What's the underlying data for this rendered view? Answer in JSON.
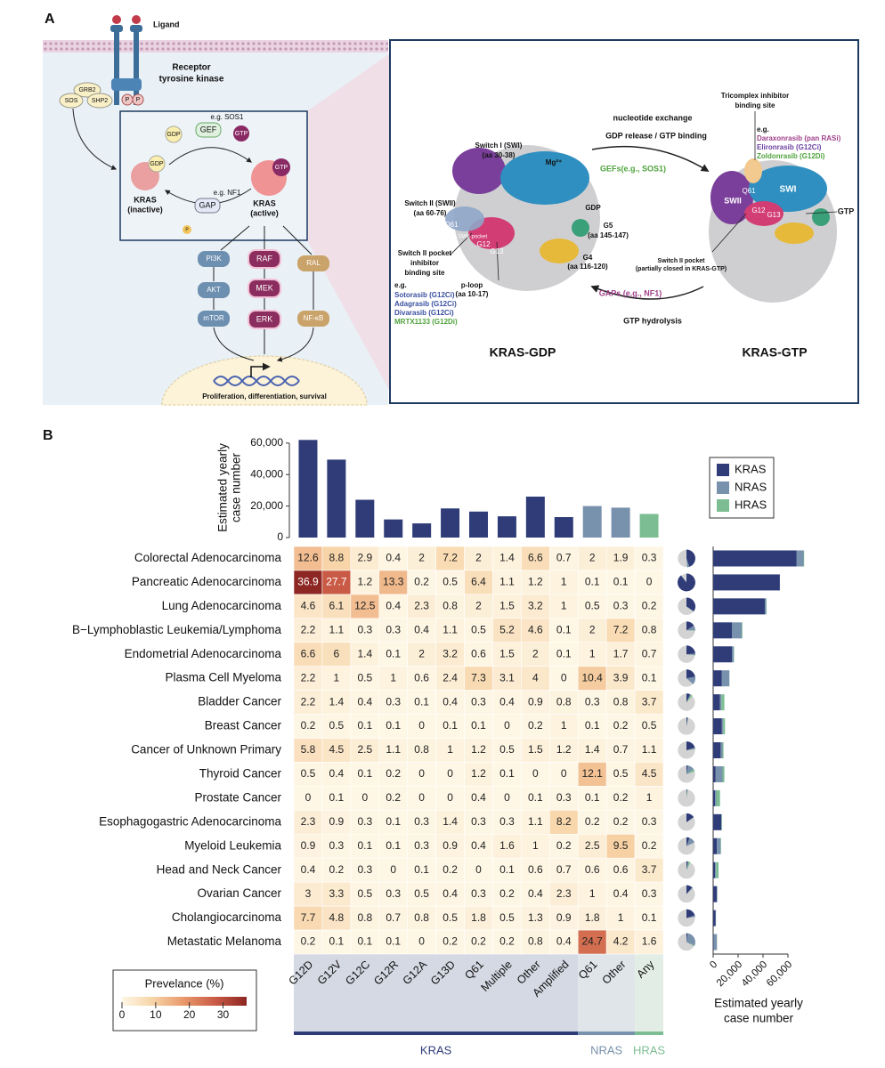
{
  "panel_a": {
    "labels": [
      "A",
      "Ligand",
      "Receptor",
      "tyrosine kinase",
      "GRB2",
      "SOS",
      "SHP2",
      "P",
      "P",
      "e.g. SOS1",
      "GEF",
      "GDP",
      "GTP",
      "GDP",
      "KRAS",
      "(inactive)",
      "GTP",
      "KRAS",
      "(active)",
      "e.g. NF1",
      "GAP",
      "P",
      "PI3K",
      "AKT",
      "mTOR",
      "RAF",
      "MEK",
      "ERK",
      "RAL",
      "NF-κB",
      "Proliferation, differentiation, survival",
      "nucleotide exchange",
      "GDP release / GTP binding",
      "GEFs(e.g., SOS1)",
      "GAPs (e.g., NF1)",
      "GTP hydrolysis",
      "KRAS-GDP",
      "KRAS-GTP",
      "Switch I (SWI)",
      "(aa 30-38)",
      "Mg²⁺",
      "Switch II (SWII)",
      "(aa 60-76)",
      "GDP",
      "G5",
      "(aa 145-147)",
      "G4",
      "(aa 116-120)",
      "Switch II pocket",
      "inhibitor",
      "binding site",
      "p-loop",
      "(aa 10-17)",
      "e.g.",
      "Sotorasib (G12Ci)",
      "Adagrasib (G12Ci)",
      "Divarasib (G12Ci)",
      "MRTX1133 (G12Di)",
      "Tricomplex inhibitor",
      "binding site",
      "e.g.",
      "Daraxonrasib (pan RASi)",
      "Elironrasib (G12Ci)",
      "Zoldonrasib (G12Di)",
      "Switch II pocket",
      "(partially closed in KRAS-GTP)",
      "GTP",
      "Q61",
      "SWII pocket",
      "G12",
      "G13",
      "SWI",
      "SWII",
      "Q61",
      "G12",
      "G13"
    ]
  },
  "panel_b": {
    "letter": "B"
  },
  "chart_data": [
    {
      "type": "heatmap",
      "rows": [
        "Colorectal Adenocarcinoma",
        "Pancreatic Adenocarcinoma",
        "Lung Adenocarcinoma",
        "B−Lymphoblastic Leukemia/Lymphoma",
        "Endometrial Adenocarcinoma",
        "Plasma Cell Myeloma",
        "Bladder Cancer",
        "Breast Cancer",
        "Cancer of Unknown Primary",
        "Thyroid Cancer",
        "Prostate Cancer",
        "Esophagogastric Adenocarcinoma",
        "Myeloid Leukemia",
        "Head and Neck Cancer",
        "Ovarian Cancer",
        "Cholangiocarcinoma",
        "Metastatic Melanoma"
      ],
      "columns": [
        "G12D",
        "G12V",
        "G12C",
        "G12R",
        "G12A",
        "G13D",
        "Q61",
        "Multiple",
        "Other",
        "Amplified",
        "Q61",
        "Other",
        "Any"
      ],
      "column_group": [
        "KRAS",
        "KRAS",
        "KRAS",
        "KRAS",
        "KRAS",
        "KRAS",
        "KRAS",
        "KRAS",
        "KRAS",
        "KRAS",
        "NRAS",
        "NRAS",
        "HRAS"
      ],
      "groups": [
        {
          "name": "KRAS",
          "color": "#2f3c78",
          "band": "#d5d9e4"
        },
        {
          "name": "NRAS",
          "color": "#7891ac",
          "band": "#e0e5ea"
        },
        {
          "name": "HRAS",
          "color": "#7cbd93",
          "band": "#e2eee5"
        }
      ],
      "values": [
        [
          12.6,
          8.8,
          2.9,
          0.4,
          2,
          7.2,
          2,
          1.4,
          6.6,
          0.7,
          2,
          1.9,
          0.3
        ],
        [
          36.9,
          27.7,
          1.2,
          13.3,
          0.2,
          0.5,
          6.4,
          1.1,
          1.2,
          1,
          0.1,
          0.1,
          0
        ],
        [
          4.6,
          6.1,
          12.5,
          0.4,
          2.3,
          0.8,
          2,
          1.5,
          3.2,
          1,
          0.5,
          0.3,
          0.2
        ],
        [
          2.2,
          1.1,
          0.3,
          0.3,
          0.4,
          1.1,
          0.5,
          5.2,
          4.6,
          0.1,
          2,
          7.2,
          0.8
        ],
        [
          6.6,
          6,
          1.4,
          0.1,
          2,
          3.2,
          0.6,
          1.5,
          2,
          0.1,
          1,
          1.7,
          0.7
        ],
        [
          2.2,
          1,
          0.5,
          1,
          0.6,
          2.4,
          7.3,
          3.1,
          4,
          0,
          10.4,
          3.9,
          0.1
        ],
        [
          2.2,
          1.4,
          0.4,
          0.3,
          0.1,
          0.4,
          0.3,
          0.4,
          0.9,
          0.8,
          0.3,
          0.8,
          3.7
        ],
        [
          0.2,
          0.5,
          0.1,
          0.1,
          0,
          0.1,
          0.1,
          0,
          0.2,
          1,
          0.1,
          0.2,
          0.5
        ],
        [
          5.8,
          4.5,
          2.5,
          1.1,
          0.8,
          1,
          1.2,
          0.5,
          1.5,
          1.2,
          1.4,
          0.7,
          1.1
        ],
        [
          0.5,
          0.4,
          0.1,
          0.2,
          0,
          0,
          1.2,
          0.1,
          0,
          0,
          12.1,
          0.5,
          4.5
        ],
        [
          0,
          0.1,
          0,
          0.2,
          0,
          0,
          0.4,
          0,
          0.1,
          0.3,
          0.1,
          0.2,
          1
        ],
        [
          2.3,
          0.9,
          0.3,
          0.1,
          0.3,
          1.4,
          0.3,
          0.3,
          1.1,
          8.2,
          0.2,
          0.2,
          0.3
        ],
        [
          0.9,
          0.3,
          0.1,
          0.1,
          0.3,
          0.9,
          0.4,
          1.6,
          1,
          0.2,
          2.5,
          9.5,
          0.2
        ],
        [
          0.4,
          0.2,
          0.3,
          0,
          0.1,
          0.2,
          0,
          0.1,
          0.6,
          0.7,
          0.6,
          0.6,
          3.7
        ],
        [
          3,
          3.3,
          0.5,
          0.3,
          0.5,
          0.4,
          0.3,
          0.2,
          0.4,
          2.3,
          1,
          0.4,
          0.3
        ],
        [
          7.7,
          4.8,
          0.8,
          0.7,
          0.8,
          0.5,
          1.8,
          0.5,
          1.3,
          0.9,
          1.8,
          1,
          0.1
        ],
        [
          0.2,
          0.1,
          0.1,
          0.1,
          0,
          0.2,
          0.2,
          0.2,
          0.8,
          0.4,
          24.7,
          4.2,
          1.6
        ]
      ],
      "colorbar_title": "Prevelance (%)",
      "clim": [
        0,
        37
      ],
      "cticks": [
        0,
        10,
        20,
        30
      ],
      "colormap": [
        "#fef7e6",
        "#f7d3a6",
        "#e8976a",
        "#c95a45",
        "#8c2623"
      ]
    },
    {
      "type": "bar",
      "ylabel": [
        "Estimated yearly",
        "case number"
      ],
      "values": [
        62000,
        49500,
        24000,
        11500,
        9000,
        18500,
        16500,
        13500,
        26000,
        13000,
        20000,
        19000,
        15000
      ],
      "colors": [
        "#2f3c78",
        "#2f3c78",
        "#2f3c78",
        "#2f3c78",
        "#2f3c78",
        "#2f3c78",
        "#2f3c78",
        "#2f3c78",
        "#2f3c78",
        "#2f3c78",
        "#7891ac",
        "#7891ac",
        "#7cbd93"
      ],
      "ylim": [
        0,
        65000
      ],
      "yticks": [
        0,
        {
          "value": 20000,
          "label": "20,000"
        },
        {
          "value": 40000,
          "label": "40,000"
        },
        {
          "value": 60000,
          "label": "60,000"
        }
      ]
    },
    {
      "type": "stacked_barh",
      "xlabel": [
        "Estimated yearly",
        "case number"
      ],
      "legend": "upper right",
      "series": [
        {
          "name": "KRAS",
          "color": "#2f3c78",
          "values": [
            67000,
            53500,
            41500,
            15000,
            15000,
            7000,
            5500,
            7000,
            6000,
            2000,
            1500,
            6500,
            3000,
            1500,
            3000,
            2000,
            500
          ]
        },
        {
          "name": "NRAS",
          "color": "#7891ac",
          "values": [
            5500,
            100,
            1000,
            8000,
            1500,
            6000,
            1000,
            1000,
            1500,
            5500,
            1000,
            400,
            3000,
            800,
            300,
            200,
            2500
          ]
        },
        {
          "name": "HRAS",
          "color": "#7cbd93",
          "values": [
            500,
            0,
            300,
            500,
            300,
            100,
            2500,
            1500,
            800,
            1500,
            3000,
            300,
            300,
            2000,
            100,
            50,
            150
          ]
        }
      ],
      "xlim": [
        0,
        75000
      ],
      "xticks": [
        0,
        {
          "value": 20000,
          "label": "20,000"
        },
        {
          "value": 40000,
          "label": "40,000"
        },
        {
          "value": 60000,
          "label": "60,000"
        }
      ]
    }
  ]
}
